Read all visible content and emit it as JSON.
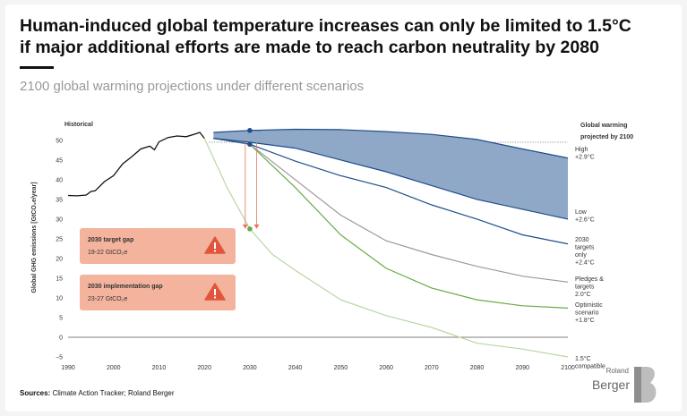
{
  "header": {
    "title_line1": "Human-induced global temperature increases can only be limited to 1.5°C",
    "title_line2": "if major additional efforts are made to reach carbon neutrality by 2080",
    "subtitle": "2100 global warming projections under different scenarios"
  },
  "footer": {
    "sources_label": "Sources:",
    "sources_text": "Climate Action Tracker; Roland Berger",
    "logo_top": "Roland",
    "logo_main": "Berger"
  },
  "chart_data": {
    "type": "line",
    "ylabel": "Global GHG emissions [GtCO₂e/year]",
    "xlim": [
      1990,
      2100
    ],
    "ylim": [
      -5,
      52
    ],
    "x_ticks": [
      1990,
      2000,
      2010,
      2020,
      2030,
      2040,
      2050,
      2060,
      2070,
      2080,
      2090,
      2100
    ],
    "y_ticks": [
      -5,
      0,
      5,
      10,
      15,
      20,
      25,
      30,
      35,
      40,
      45,
      50
    ],
    "historical_label": "Historical",
    "right_title_line1": "Global warming",
    "right_title_line2": "projected by 2100",
    "colors": {
      "historical": "#111111",
      "high": "#1f4e8c",
      "band": "#8fa8c8",
      "targets": "#1f4e8c",
      "pledges": "#9a9a9a",
      "optimistic": "#6aaa45",
      "compatible": "#b9d7a3",
      "gap_arrow": "#e8765e"
    },
    "historical": {
      "x": [
        1990,
        1992,
        1994,
        1995,
        1996,
        1998,
        2000,
        2002,
        2004,
        2006,
        2008,
        2009,
        2010,
        2012,
        2014,
        2016,
        2018,
        2019,
        2020
      ],
      "y": [
        36,
        35.9,
        36.1,
        37,
        37.2,
        39.5,
        41,
        44,
        45.8,
        47.8,
        48.5,
        47.6,
        49.6,
        50.7,
        51.1,
        50.9,
        51.6,
        52,
        50.5
      ]
    },
    "band": {
      "upper": {
        "x": [
          2022,
          2030,
          2040,
          2050,
          2060,
          2070,
          2080,
          2090,
          2100
        ],
        "y": [
          52,
          52.5,
          52.8,
          52.7,
          52.2,
          51.5,
          50.2,
          47.8,
          45.5
        ]
      },
      "lower": {
        "x": [
          2022,
          2030,
          2040,
          2050,
          2060,
          2070,
          2080,
          2090,
          2100
        ],
        "y": [
          50.5,
          49.5,
          48,
          45,
          42,
          38.5,
          35,
          32.5,
          30
        ]
      }
    },
    "reference_line_y": 49.5,
    "series": [
      {
        "name": "High",
        "label_lines": [
          "High",
          "+2.9°C"
        ],
        "color_key": "high",
        "x": [
          2022,
          2030,
          2040,
          2050,
          2060,
          2070,
          2080,
          2090,
          2100
        ],
        "y": [
          52,
          52.5,
          52.8,
          52.7,
          52.2,
          51.5,
          50.2,
          47.8,
          45.5
        ]
      },
      {
        "name": "Low",
        "label_lines": [
          "Low",
          "+2.6°C"
        ],
        "color_key": "high",
        "x": [
          2022,
          2030,
          2040,
          2050,
          2060,
          2070,
          2080,
          2090,
          2100
        ],
        "y": [
          50.5,
          49.5,
          48,
          45,
          42,
          38.5,
          35,
          32.5,
          30
        ]
      },
      {
        "name": "2030 targets only",
        "label_lines": [
          "2030",
          "targets",
          "only",
          "+2.4°C"
        ],
        "color_key": "targets",
        "x": [
          2022,
          2030,
          2040,
          2050,
          2060,
          2070,
          2080,
          2090,
          2100
        ],
        "y": [
          50.5,
          49,
          44.7,
          41,
          38,
          33.6,
          30,
          26,
          23.7
        ]
      },
      {
        "name": "Pledges & targets",
        "label_lines": [
          "Pledges &",
          "targets",
          "2.0°C"
        ],
        "color_key": "pledges",
        "x": [
          2022,
          2030,
          2040,
          2050,
          2060,
          2070,
          2080,
          2090,
          2100
        ],
        "y": [
          50.5,
          49,
          40,
          31,
          24.5,
          21,
          18,
          15.5,
          14
        ]
      },
      {
        "name": "Optimistic scenario",
        "label_lines": [
          "Optimistic",
          "scenario",
          "+1.8°C"
        ],
        "color_key": "optimistic",
        "x": [
          2022,
          2030,
          2040,
          2050,
          2060,
          2070,
          2080,
          2090,
          2100
        ],
        "y": [
          50.5,
          49,
          38,
          26,
          17.5,
          12.5,
          9.5,
          8,
          7.4
        ]
      },
      {
        "name": "1.5°C compatible",
        "label_lines": [
          "1.5°C",
          "compatible"
        ],
        "color_key": "compatible",
        "x": [
          2020,
          2025,
          2030,
          2035,
          2040,
          2050,
          2060,
          2070,
          2080,
          2090,
          2100
        ],
        "y": [
          50.5,
          38,
          27.5,
          21,
          17,
          9.5,
          5.5,
          2.5,
          -1.5,
          -3,
          -5
        ]
      }
    ],
    "markers": [
      {
        "x": 2030,
        "y": 52.5,
        "color_key": "high"
      },
      {
        "x": 2030,
        "y": 49,
        "color_key": "targets"
      },
      {
        "x": 2030,
        "y": 27.5,
        "color_key": "optimistic"
      }
    ],
    "gap_arrows": [
      {
        "x": 2029,
        "from": 49.5,
        "to": 27.5
      },
      {
        "x": 2031.5,
        "from": 49.5,
        "to": 27.5
      }
    ],
    "callouts": [
      {
        "title": "2030 target gap",
        "value": "19-22 GtCO₂e"
      },
      {
        "title": "2030 implementation gap",
        "value": "23-27 GtCO₂e"
      }
    ]
  }
}
